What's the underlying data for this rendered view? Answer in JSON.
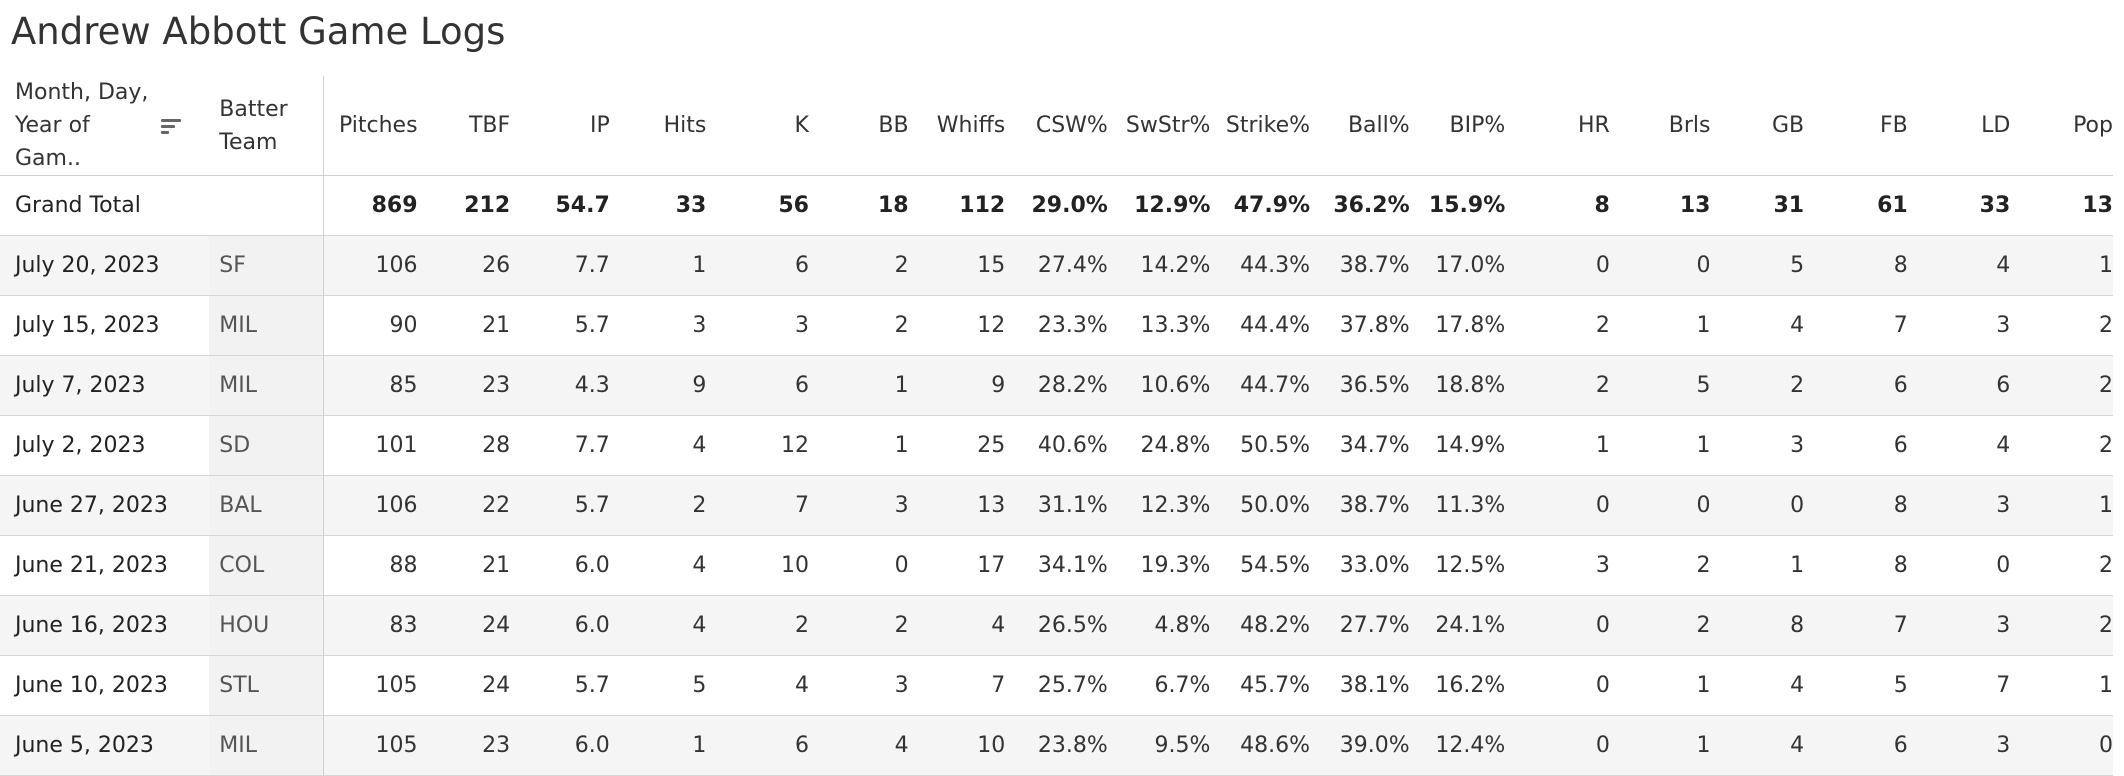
{
  "title": "Andrew Abbott Game Logs",
  "columns": {
    "date": "Month, Day, Year of Gam..",
    "team": "Batter Team",
    "stats": [
      "Pitches",
      "TBF",
      "IP",
      "Hits",
      "K",
      "BB",
      "Whiffs",
      "CSW%",
      "SwStr%",
      "Strike%",
      "Ball%",
      "BIP%",
      "HR",
      "Brls",
      "GB",
      "FB",
      "LD",
      "Pop"
    ]
  },
  "sort_icon": "sort-descending-icon",
  "grand_total": {
    "label": "Grand Total",
    "values": [
      "869",
      "212",
      "54.7",
      "33",
      "56",
      "18",
      "112",
      "29.0%",
      "12.9%",
      "47.9%",
      "36.2%",
      "15.9%",
      "8",
      "13",
      "31",
      "61",
      "33",
      "13"
    ]
  },
  "rows": [
    {
      "date": "July 20, 2023",
      "team": "SF",
      "values": [
        "106",
        "26",
        "7.7",
        "1",
        "6",
        "2",
        "15",
        "27.4%",
        "14.2%",
        "44.3%",
        "38.7%",
        "17.0%",
        "0",
        "0",
        "5",
        "8",
        "4",
        "1"
      ]
    },
    {
      "date": "July 15, 2023",
      "team": "MIL",
      "values": [
        "90",
        "21",
        "5.7",
        "3",
        "3",
        "2",
        "12",
        "23.3%",
        "13.3%",
        "44.4%",
        "37.8%",
        "17.8%",
        "2",
        "1",
        "4",
        "7",
        "3",
        "2"
      ]
    },
    {
      "date": "July 7, 2023",
      "team": "MIL",
      "values": [
        "85",
        "23",
        "4.3",
        "9",
        "6",
        "1",
        "9",
        "28.2%",
        "10.6%",
        "44.7%",
        "36.5%",
        "18.8%",
        "2",
        "5",
        "2",
        "6",
        "6",
        "2"
      ]
    },
    {
      "date": "July 2, 2023",
      "team": "SD",
      "values": [
        "101",
        "28",
        "7.7",
        "4",
        "12",
        "1",
        "25",
        "40.6%",
        "24.8%",
        "50.5%",
        "34.7%",
        "14.9%",
        "1",
        "1",
        "3",
        "6",
        "4",
        "2"
      ]
    },
    {
      "date": "June 27, 2023",
      "team": "BAL",
      "values": [
        "106",
        "22",
        "5.7",
        "2",
        "7",
        "3",
        "13",
        "31.1%",
        "12.3%",
        "50.0%",
        "38.7%",
        "11.3%",
        "0",
        "0",
        "0",
        "8",
        "3",
        "1"
      ]
    },
    {
      "date": "June 21, 2023",
      "team": "COL",
      "values": [
        "88",
        "21",
        "6.0",
        "4",
        "10",
        "0",
        "17",
        "34.1%",
        "19.3%",
        "54.5%",
        "33.0%",
        "12.5%",
        "3",
        "2",
        "1",
        "8",
        "0",
        "2"
      ]
    },
    {
      "date": "June 16, 2023",
      "team": "HOU",
      "values": [
        "83",
        "24",
        "6.0",
        "4",
        "2",
        "2",
        "4",
        "26.5%",
        "4.8%",
        "48.2%",
        "27.7%",
        "24.1%",
        "0",
        "2",
        "8",
        "7",
        "3",
        "2"
      ]
    },
    {
      "date": "June 10, 2023",
      "team": "STL",
      "values": [
        "105",
        "24",
        "5.7",
        "5",
        "4",
        "3",
        "7",
        "25.7%",
        "6.7%",
        "45.7%",
        "38.1%",
        "16.2%",
        "0",
        "1",
        "4",
        "5",
        "7",
        "1"
      ]
    },
    {
      "date": "June 5, 2023",
      "team": "MIL",
      "values": [
        "105",
        "23",
        "6.0",
        "1",
        "6",
        "4",
        "10",
        "23.8%",
        "9.5%",
        "48.6%",
        "39.0%",
        "12.4%",
        "0",
        "1",
        "4",
        "6",
        "3",
        "0"
      ]
    }
  ]
}
